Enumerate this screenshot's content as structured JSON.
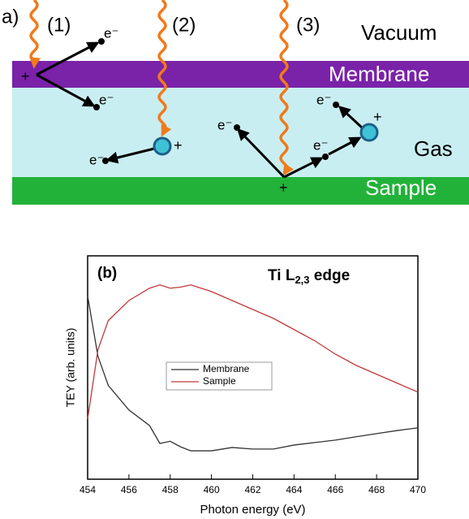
{
  "diagram": {
    "panel_label": "a)",
    "processes": [
      "(1)",
      "(2)",
      "(3)"
    ],
    "layers": [
      "Vacuum",
      "Membrane",
      "Gas",
      "Sample"
    ],
    "electrons": [
      "e⁻",
      "e⁻",
      "e⁻",
      "e⁻",
      "e⁻",
      "e⁻"
    ],
    "charges": [
      "+",
      "+",
      "+",
      "+"
    ]
  },
  "chart_data": {
    "type": "line",
    "panel_label": "(b)",
    "title": {
      "main": "Ti L",
      "sub": "2,3",
      "rest": " edge"
    },
    "x_label": "Photon energy (eV)",
    "y_label": "TEY (arb. units)",
    "x": [
      454,
      454.5,
      455,
      456,
      457,
      457.5,
      458,
      458.5,
      459,
      460,
      461,
      462,
      463,
      464,
      465,
      466,
      467,
      468,
      469,
      470
    ],
    "series": [
      {
        "name": "Membrane",
        "color": "#333333",
        "values": [
          0.82,
          0.55,
          0.42,
          0.31,
          0.24,
          0.16,
          0.17,
          0.145,
          0.127,
          0.127,
          0.142,
          0.135,
          0.135,
          0.153,
          0.164,
          0.175,
          0.19,
          0.204,
          0.218,
          0.23
        ]
      },
      {
        "name": "Sample",
        "color": "#c0393b",
        "values": [
          0.27,
          0.58,
          0.71,
          0.8,
          0.855,
          0.87,
          0.855,
          0.86,
          0.87,
          0.84,
          0.8,
          0.76,
          0.72,
          0.67,
          0.62,
          0.56,
          0.51,
          0.47,
          0.43,
          0.39
        ]
      }
    ],
    "xlim": [
      454,
      470
    ],
    "xticks": [
      454,
      456,
      458,
      460,
      462,
      464,
      466,
      468,
      470
    ],
    "ylim": [
      0,
      1
    ]
  }
}
